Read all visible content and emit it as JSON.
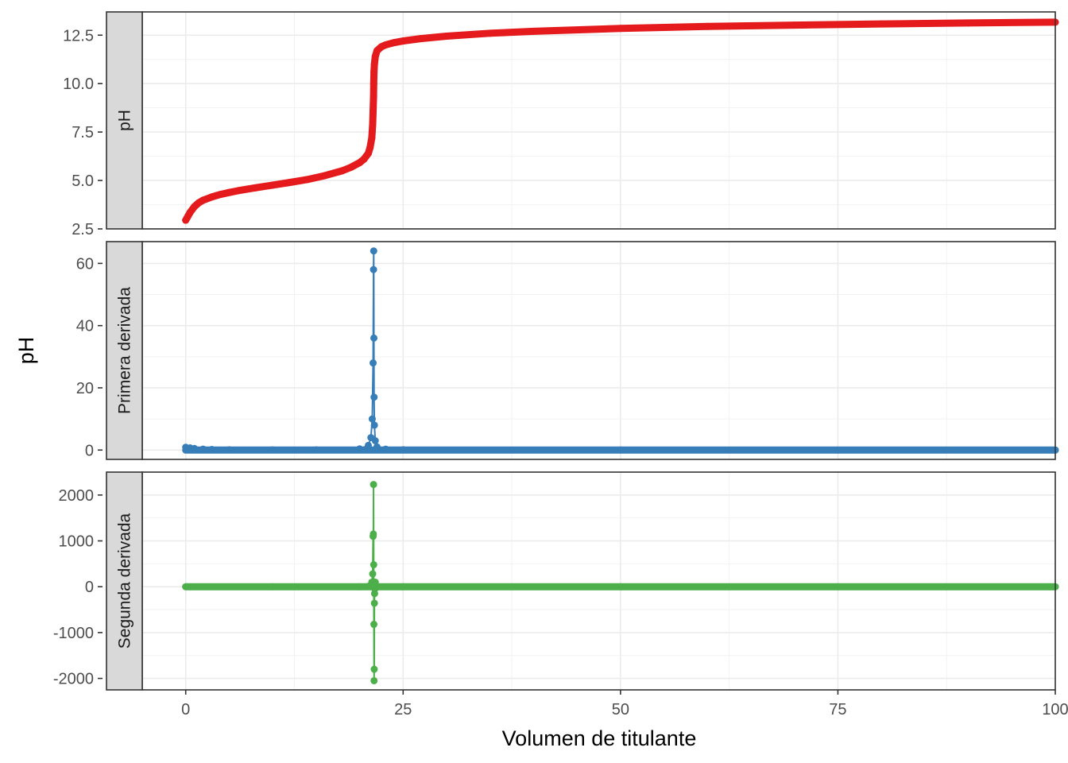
{
  "chart_data": {
    "type": "line",
    "xlabel": "Volumen de titulante",
    "ylabel": "pH",
    "xlim": [
      -5,
      100
    ],
    "x_ticks": [
      0,
      25,
      50,
      75,
      100
    ],
    "x_tick_labels": [
      "0",
      "25",
      "50",
      "75",
      "100"
    ],
    "grid": true,
    "legend": "none",
    "panels": [
      {
        "strip": "pH",
        "color": "#E41A1C",
        "ylim": [
          2.5,
          13.7
        ],
        "y_ticks": [
          2.5,
          5.0,
          7.5,
          10.0,
          12.5
        ],
        "y_tick_labels": [
          "2.5",
          "5.0",
          "7.5",
          "10.0",
          "12.5"
        ],
        "series": {
          "x": [
            0,
            0.25,
            0.5,
            1,
            1.5,
            2,
            3,
            4,
            5,
            6,
            8,
            10,
            12,
            14,
            16,
            18,
            19,
            20,
            20.5,
            21,
            21.2,
            21.4,
            21.5,
            21.55,
            21.6,
            21.62,
            21.65,
            21.7,
            21.8,
            22,
            22.5,
            23,
            24,
            25,
            27,
            30,
            35,
            40,
            50,
            60,
            70,
            80,
            90,
            100
          ],
          "y": [
            2.95,
            3.15,
            3.35,
            3.65,
            3.85,
            3.98,
            4.15,
            4.28,
            4.38,
            4.47,
            4.62,
            4.76,
            4.9,
            5.05,
            5.25,
            5.5,
            5.68,
            5.92,
            6.1,
            6.4,
            6.7,
            7.2,
            7.9,
            8.6,
            9.3,
            10.0,
            10.6,
            11.0,
            11.4,
            11.7,
            11.9,
            12.0,
            12.12,
            12.2,
            12.32,
            12.45,
            12.6,
            12.7,
            12.85,
            12.95,
            13.02,
            13.08,
            13.13,
            13.17
          ]
        }
      },
      {
        "strip": "Primera derivada",
        "color": "#377EB8",
        "ylim": [
          -3,
          67
        ],
        "y_ticks": [
          0,
          20,
          40,
          60
        ],
        "y_tick_labels": [
          "0",
          "20",
          "40",
          "60"
        ],
        "series": {
          "x": [
            0,
            0.5,
            1,
            2,
            3,
            5,
            10,
            15,
            20,
            21,
            21.3,
            21.45,
            21.55,
            21.6,
            21.62,
            21.64,
            21.66,
            21.7,
            21.8,
            22,
            23,
            25,
            50,
            75,
            100
          ],
          "y": [
            0.9,
            0.7,
            0.5,
            0.3,
            0.2,
            0.1,
            0.06,
            0.08,
            0.4,
            1.5,
            4,
            10,
            28,
            58,
            64,
            36,
            17,
            8,
            3,
            1,
            0.3,
            0.1,
            0.02,
            0.01,
            0.01
          ]
        }
      },
      {
        "strip": "Segunda derivada",
        "color": "#4DAF4A",
        "ylim": [
          -2250,
          2500
        ],
        "y_ticks": [
          -2000,
          -1000,
          0,
          1000,
          2000
        ],
        "y_tick_labels": [
          "-2000",
          "-1000",
          "0",
          "1000",
          "2000"
        ],
        "series": {
          "x": [
            0,
            10,
            20,
            21,
            21.4,
            21.5,
            21.55,
            21.58,
            21.6,
            21.62,
            21.64,
            21.66,
            21.68,
            21.7,
            21.72,
            21.75,
            21.8,
            21.9,
            22,
            25,
            50,
            75,
            100
          ],
          "y": [
            0,
            0,
            0,
            10,
            100,
            280,
            1100,
            1150,
            2230,
            480,
            -820,
            -2050,
            -1800,
            -360,
            -150,
            -50,
            100,
            20,
            0,
            0,
            0,
            0,
            0
          ]
        }
      }
    ]
  }
}
